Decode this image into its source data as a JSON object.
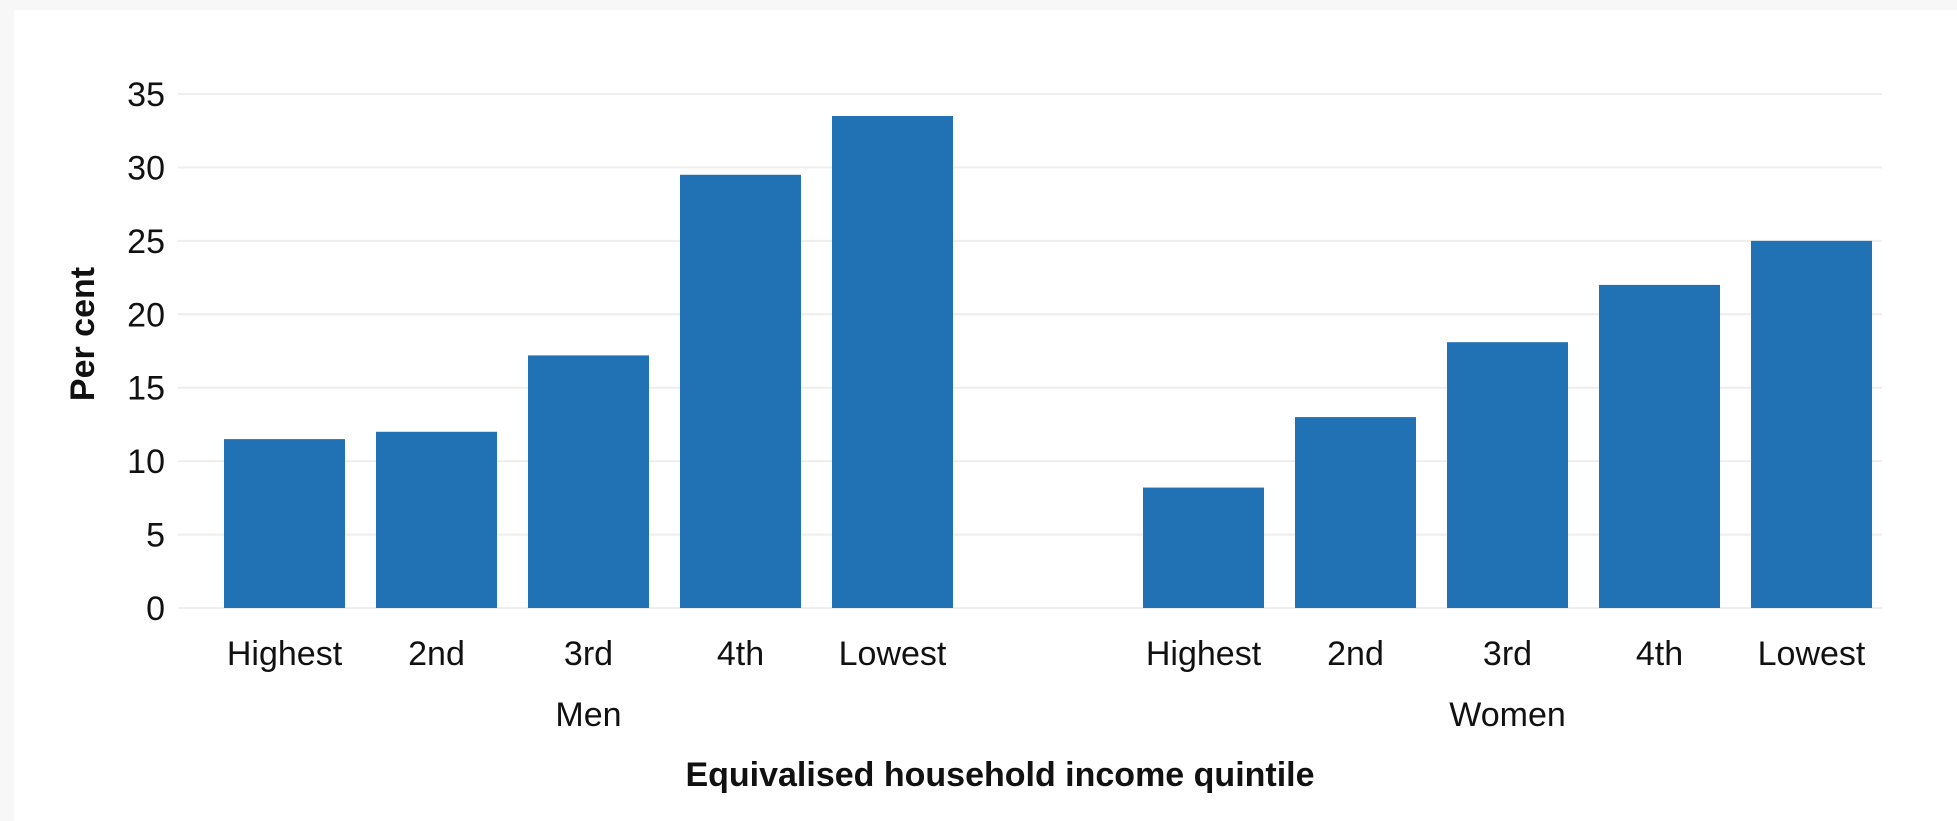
{
  "chart_data": {
    "type": "bar",
    "ylabel": "Per cent",
    "xlabel": "Equivalised household income quintile",
    "ylim": [
      0,
      35
    ],
    "yticks": [
      0,
      5,
      10,
      15,
      20,
      25,
      30,
      35
    ],
    "grid": true,
    "bar_color": "#2171b5",
    "grid_color": "#eeeeee",
    "groups": [
      {
        "label": "Men",
        "categories": [
          "Highest",
          "2nd",
          "3rd",
          "4th",
          "Lowest"
        ],
        "values": [
          11.5,
          12.0,
          17.2,
          29.5,
          33.5
        ]
      },
      {
        "label": "Women",
        "categories": [
          "Highest",
          "2nd",
          "3rd",
          "4th",
          "Lowest"
        ],
        "values": [
          8.2,
          13.0,
          18.1,
          22.0,
          25.0
        ]
      }
    ]
  }
}
